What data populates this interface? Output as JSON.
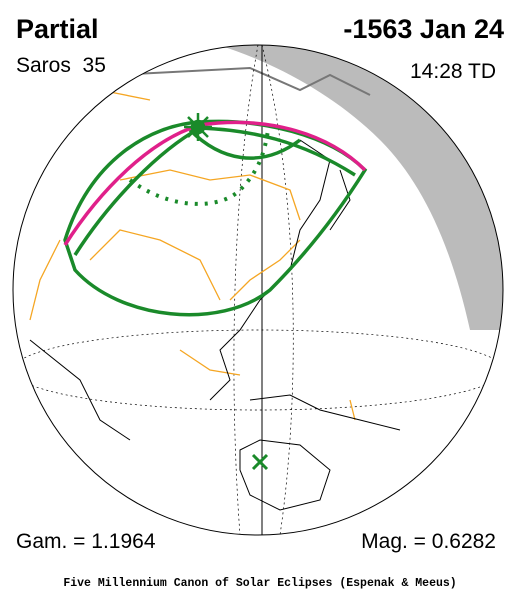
{
  "header": {
    "type": "Partial",
    "date": "-1563 Jan 24",
    "saros": "Saros  35",
    "time": "14:28 TD"
  },
  "footer": {
    "gamma": "Gam. = 1.1964",
    "magnitude": "Mag. = 0.6282",
    "credit": "Five Millennium Canon of Solar Eclipses (Espenak & Meeus)"
  }
}
